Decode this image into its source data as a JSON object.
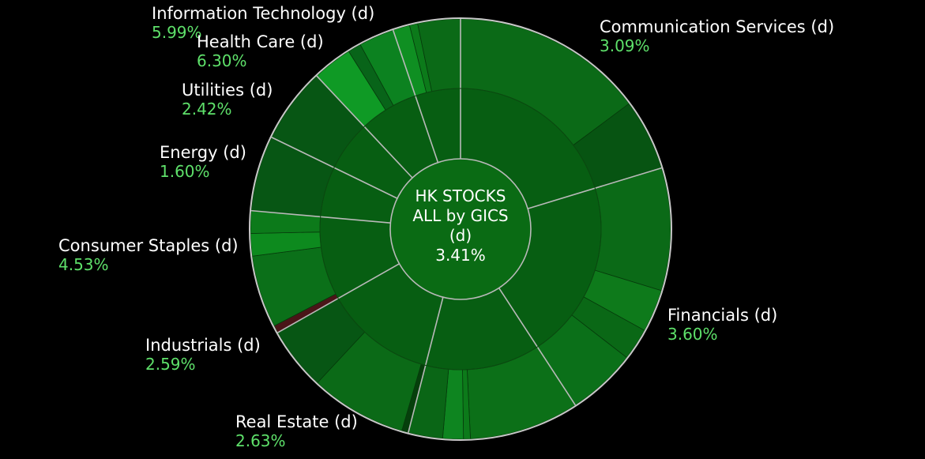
{
  "chart_data": {
    "type": "sunburst",
    "center": {
      "line1": "HK STOCKS",
      "line2": "ALL by GICS",
      "line3": "(d)",
      "change": "3.41%"
    },
    "sectors": [
      {
        "name": "Communication Services (d)",
        "change": "3.09%",
        "share": 0.203,
        "subs": [
          {
            "share": 0.73,
            "color": "#0b6a17"
          },
          {
            "share": 0.27,
            "color": "#075412"
          }
        ]
      },
      {
        "name": "Financials (d)",
        "change": "3.60%",
        "share": 0.205,
        "subs": [
          {
            "share": 0.46,
            "color": "#0b6a17"
          },
          {
            "share": 0.16,
            "color": "#0e7a1b"
          },
          {
            "share": 0.12,
            "color": "#0a6816"
          },
          {
            "share": 0.26,
            "color": "#0b7019"
          }
        ]
      },
      {
        "name": "Real Estate (d)",
        "change": "2.63%",
        "share": 0.132,
        "subs": [
          {
            "share": 0.64,
            "color": "#0c7018"
          },
          {
            "share": 0.04,
            "color": "#0c7a1a"
          },
          {
            "share": 0.12,
            "color": "#0e8520"
          },
          {
            "share": 0.2,
            "color": "#0a6616"
          }
        ]
      },
      {
        "name": "Industrials (d)",
        "change": "2.59%",
        "share": 0.128,
        "subs": [
          {
            "share": 0.04,
            "color": "#063f0c"
          },
          {
            "share": 0.58,
            "color": "#0b6a17"
          },
          {
            "share": 0.38,
            "color": "#075614"
          }
        ]
      },
      {
        "name": "Consumer Staples (d)",
        "change": "4.53%",
        "share": 0.096,
        "subs": [
          {
            "share": 0.06,
            "color": "#4a1518"
          },
          {
            "share": 0.58,
            "color": "#0b7019"
          },
          {
            "share": 0.18,
            "color": "#0d8a1e"
          },
          {
            "share": 0.18,
            "color": "#0c7a1a"
          }
        ]
      },
      {
        "name": "Energy (d)",
        "change": "1.60%",
        "share": 0.058,
        "subs": [
          {
            "share": 1.0,
            "color": "#075614"
          }
        ]
      },
      {
        "name": "Utilities (d)",
        "change": "2.42%",
        "share": 0.058,
        "subs": [
          {
            "share": 1.0,
            "color": "#075614"
          }
        ]
      },
      {
        "name": "Health Care (d)",
        "change": "6.30%",
        "share": 0.068,
        "subs": [
          {
            "share": 0.45,
            "color": "#0f9a25"
          },
          {
            "share": 0.15,
            "color": "#086419"
          },
          {
            "share": 0.4,
            "color": "#0c8220"
          }
        ]
      },
      {
        "name": "Information Technology (d)",
        "change": "5.99%",
        "share": 0.052,
        "subs": [
          {
            "share": 0.25,
            "color": "#0f8f22"
          },
          {
            "share": 0.12,
            "color": "#0c7a1a"
          },
          {
            "share": 0.63,
            "color": "#0b6a17"
          }
        ]
      }
    ],
    "colors": {
      "inner_sector": "#075e12",
      "center_fill": "#0a6b14",
      "separator": "#b9b9b9",
      "outline": "#c8c8c8",
      "positive_text": "#5ee06a",
      "background": "#000000"
    }
  },
  "labels": [
    {
      "name": "Information Technology (d)",
      "change": "5.99%"
    },
    {
      "name": "Health Care (d)",
      "change": "6.30%"
    },
    {
      "name": "Utilities (d)",
      "change": "2.42%"
    },
    {
      "name": "Energy (d)",
      "change": "1.60%"
    },
    {
      "name": "Consumer Staples (d)",
      "change": "4.53%"
    },
    {
      "name": "Industrials (d)",
      "change": "2.59%"
    },
    {
      "name": "Real Estate (d)",
      "change": "2.63%"
    },
    {
      "name": "Financials (d)",
      "change": "3.60%"
    },
    {
      "name": "Communication Services (d)",
      "change": "3.09%"
    }
  ]
}
